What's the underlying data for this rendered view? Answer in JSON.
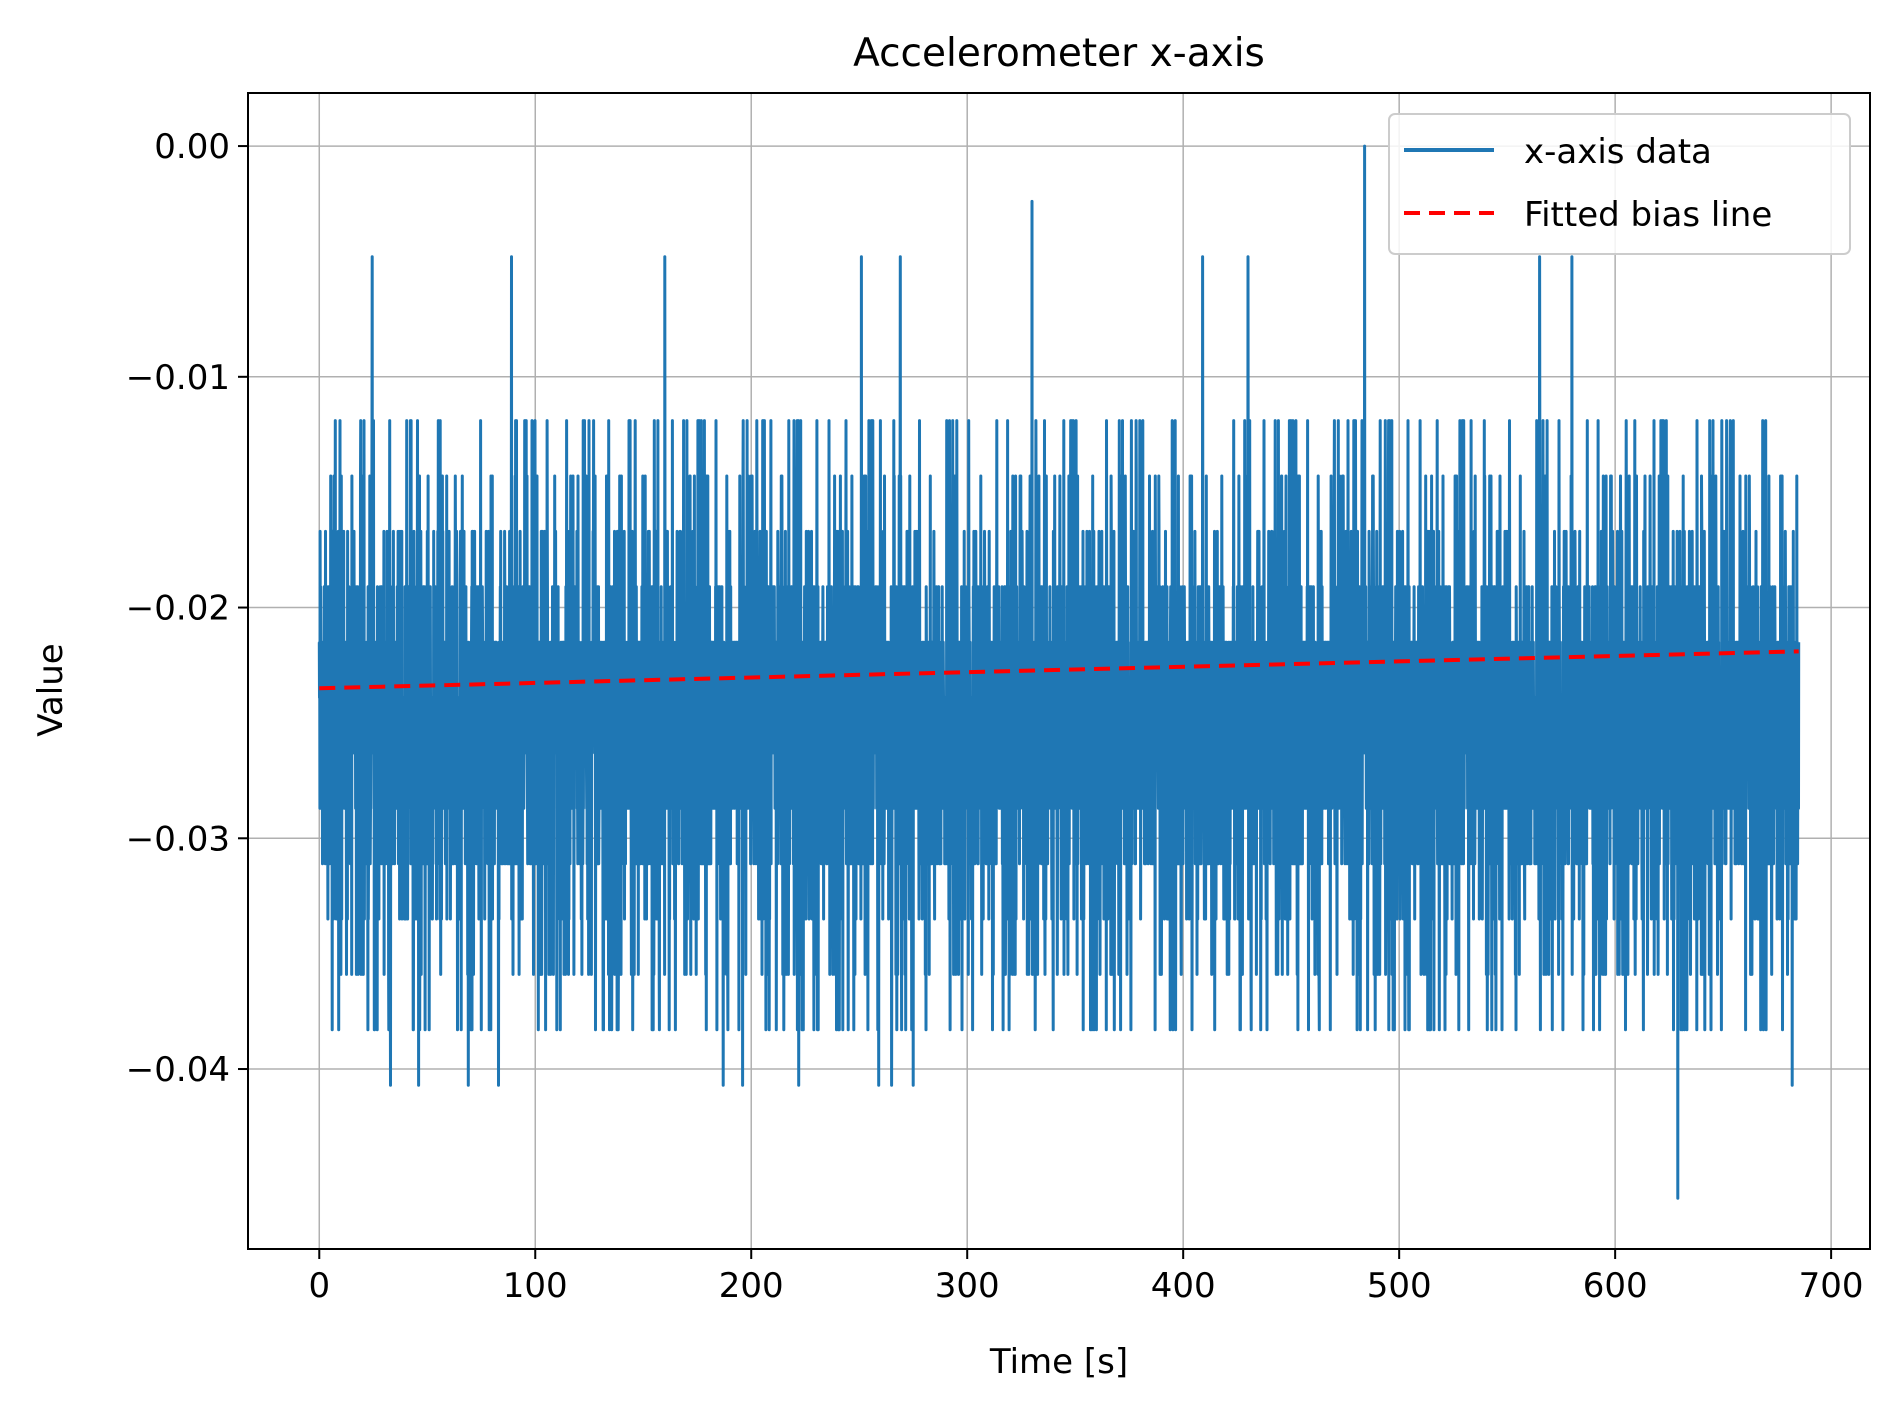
{
  "chart_data": {
    "type": "line",
    "title": "Accelerometer x-axis",
    "xlabel": "Time [s]",
    "ylabel": "Value",
    "xlim": [
      -33,
      718
    ],
    "ylim": [
      -0.0478,
      0.0023
    ],
    "xticks": [
      0,
      100,
      200,
      300,
      400,
      500,
      600,
      700
    ],
    "xtick_labels": [
      "0",
      "100",
      "200",
      "300",
      "400",
      "500",
      "600",
      "700"
    ],
    "yticks": [
      0.0,
      -0.01,
      -0.02,
      -0.03,
      -0.04
    ],
    "ytick_labels": [
      "0.00",
      "−0.01",
      "−0.02",
      "−0.03",
      "−0.04"
    ],
    "grid": true,
    "legend": {
      "location": "upper right"
    },
    "series": [
      {
        "name": "x-axis data",
        "color": "#1f77b4",
        "style": "solid",
        "sample_interval_s": 0.1,
        "t_start": 0,
        "t_end": 685,
        "quantization_step": 0.0024,
        "core_band": [
          -0.0311,
          -0.0144
        ],
        "typical_range": [
          -0.0359,
          -0.012
        ],
        "observed_min": -0.0456,
        "observed_max": 0.0,
        "spikes": [
          {
            "x": 24.5,
            "y": -0.0048
          },
          {
            "x": 89,
            "y": -0.0048
          },
          {
            "x": 160,
            "y": -0.0048
          },
          {
            "x": 251,
            "y": -0.0048
          },
          {
            "x": 269,
            "y": -0.0048
          },
          {
            "x": 330,
            "y": -0.0024
          },
          {
            "x": 409,
            "y": -0.0048
          },
          {
            "x": 430,
            "y": -0.0048
          },
          {
            "x": 484,
            "y": 0.0
          },
          {
            "x": 565,
            "y": -0.0048
          },
          {
            "x": 580,
            "y": -0.0048
          },
          {
            "x": 33,
            "y": -0.0407
          },
          {
            "x": 46,
            "y": -0.0407
          },
          {
            "x": 69,
            "y": -0.0407
          },
          {
            "x": 83,
            "y": -0.0407
          },
          {
            "x": 187,
            "y": -0.0407
          },
          {
            "x": 196,
            "y": -0.0407
          },
          {
            "x": 222,
            "y": -0.0407
          },
          {
            "x": 259,
            "y": -0.0407
          },
          {
            "x": 265,
            "y": -0.0407
          },
          {
            "x": 275,
            "y": -0.0407
          },
          {
            "x": 629,
            "y": -0.0456
          },
          {
            "x": 682,
            "y": -0.0407
          }
        ]
      },
      {
        "name": "Fitted bias line",
        "color": "#ff0000",
        "style": "dashed",
        "x": [
          0,
          685
        ],
        "y": [
          -0.0235,
          -0.0219
        ]
      }
    ]
  }
}
